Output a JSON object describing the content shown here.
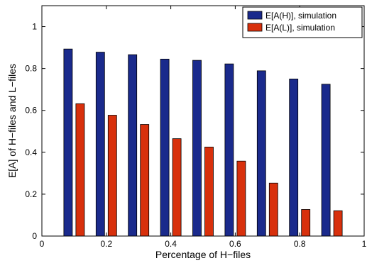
{
  "chart_data": {
    "type": "bar",
    "xlabel": "Percentage of H−files",
    "ylabel": "E[A] of H−files and L−files",
    "xlim": [
      0,
      1
    ],
    "ylim": [
      0,
      1.1
    ],
    "xticks": [
      0,
      0.2,
      0.4,
      0.6,
      0.8,
      1
    ],
    "xtick_labels": [
      "0",
      "0.2",
      "0.4",
      "0.6",
      "0.8",
      "1"
    ],
    "yticks": [
      0,
      0.2,
      0.4,
      0.6,
      0.8,
      1
    ],
    "ytick_labels": [
      "0",
      "0.2",
      "0.4",
      "0.6",
      "0.8",
      "1"
    ],
    "categories": [
      0.1,
      0.2,
      0.3,
      0.4,
      0.5,
      0.6,
      0.7,
      0.8,
      0.9
    ],
    "series": [
      {
        "name": "E[A(H)], simulation",
        "color": "#1a2a8c",
        "values": [
          0.893,
          0.878,
          0.866,
          0.845,
          0.839,
          0.822,
          0.789,
          0.75,
          0.725
        ]
      },
      {
        "name": "E[A(L)], simulation",
        "color": "#d8300c",
        "values": [
          0.632,
          0.577,
          0.533,
          0.465,
          0.425,
          0.358,
          0.253,
          0.127,
          0.121
        ]
      }
    ],
    "legend_position": "top-right",
    "grid": false
  }
}
